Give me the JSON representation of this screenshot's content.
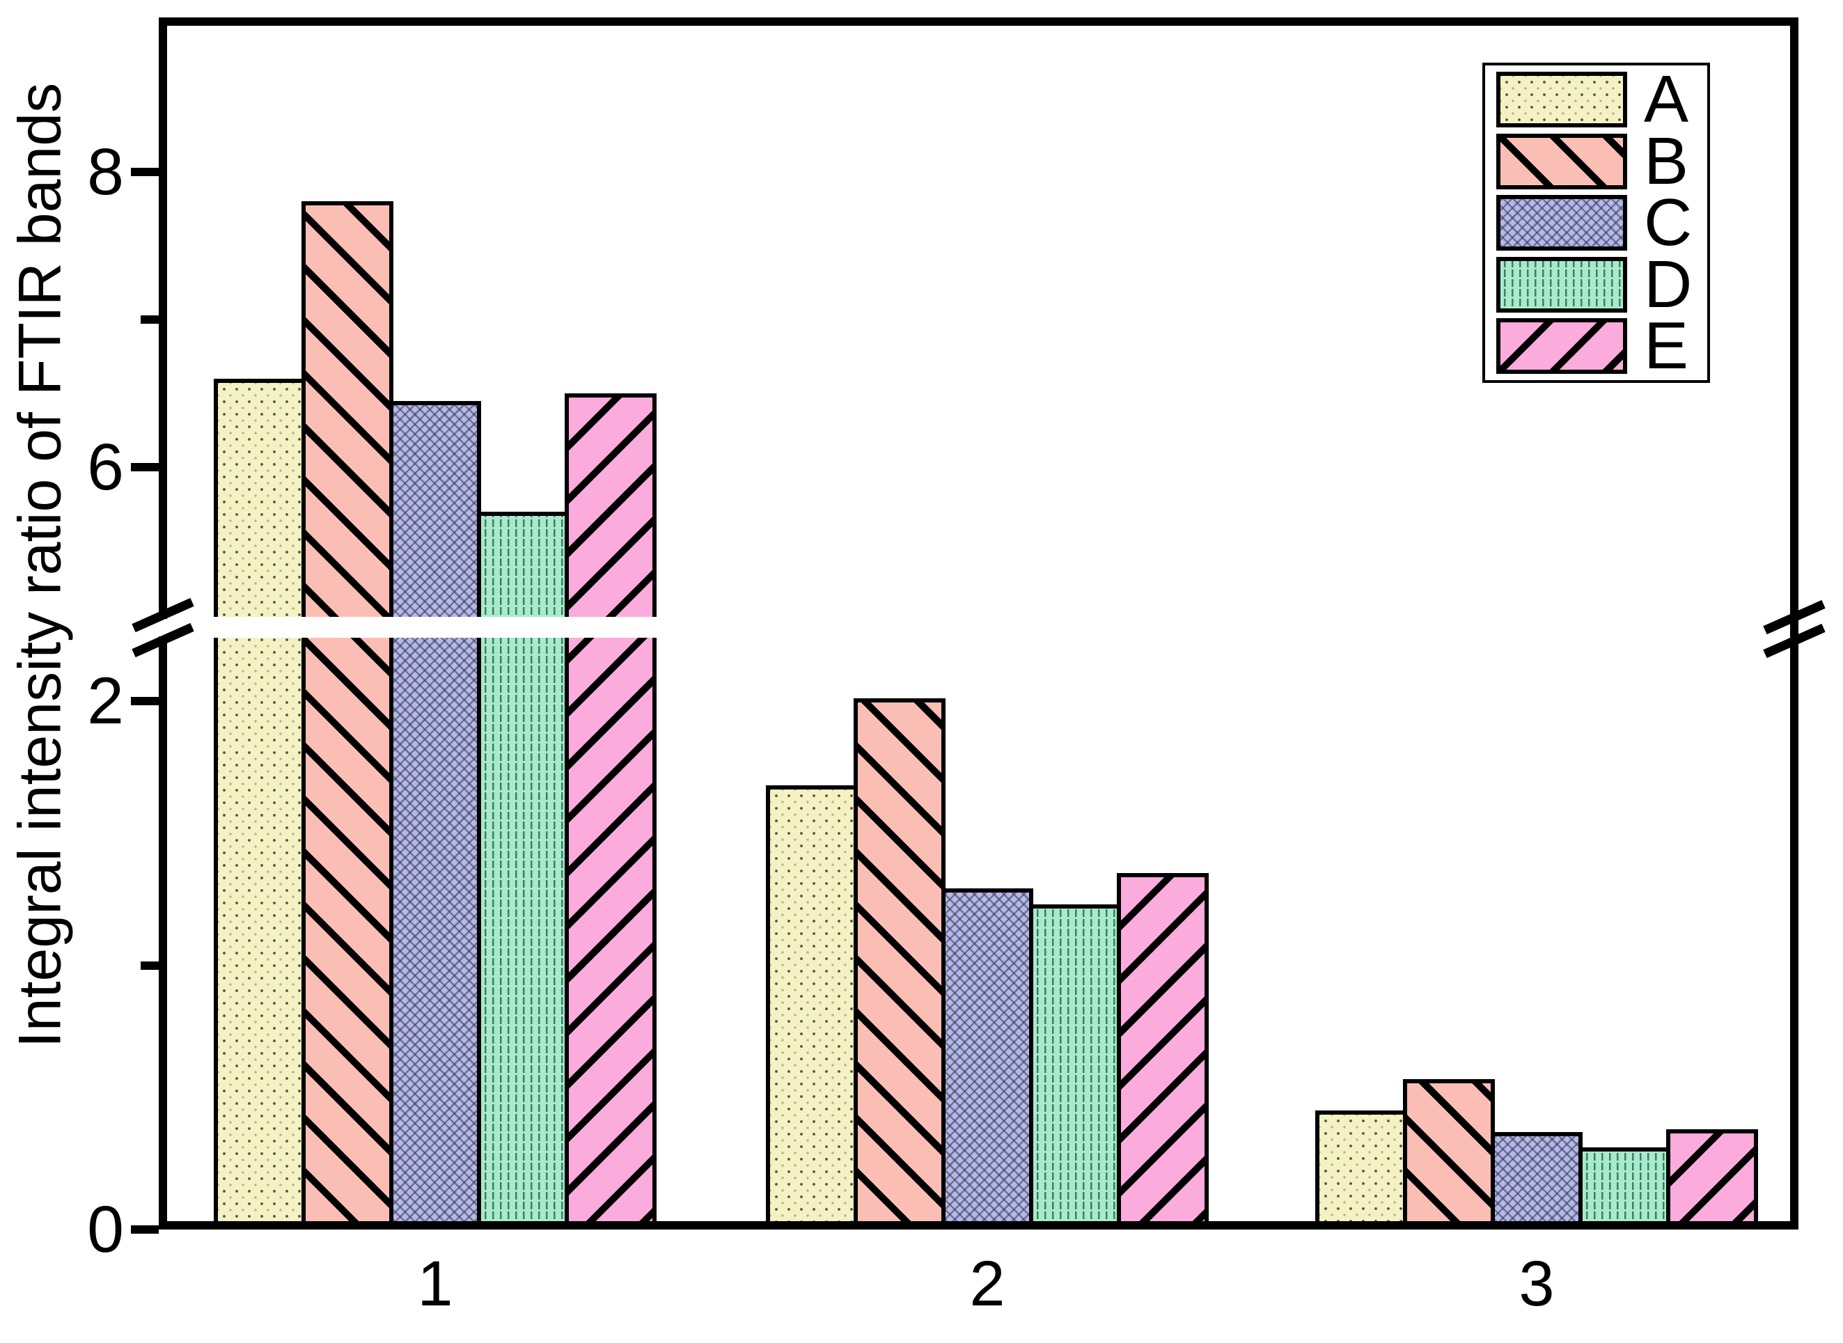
{
  "figure": {
    "background": "#FFFFFF"
  },
  "y_axis": {
    "title": "Integral intensity ratio of FTIR bands",
    "major_ticks": [
      {
        "value": 8,
        "text": "8"
      },
      {
        "value": 6,
        "text": "6"
      },
      {
        "value": 2,
        "text": "2"
      },
      {
        "value": 0,
        "text": "0"
      }
    ],
    "minor_ticks": [
      7,
      1
    ],
    "has_break": true
  },
  "x_axis": {
    "categories": [
      "1",
      "2",
      "3"
    ]
  },
  "legend": {
    "position": "top-right",
    "entries": [
      "A",
      "B",
      "C",
      "D",
      "E"
    ]
  },
  "chart_data": {
    "type": "bar",
    "title": "",
    "xlabel": "",
    "ylabel": "Integral intensity ratio of FTIR bands",
    "categories": [
      "1",
      "2",
      "3"
    ],
    "series": [
      {
        "name": "A",
        "values": [
          6.6,
          1.68,
          0.45
        ],
        "color": "#F4F1C4",
        "pattern": "dots"
      },
      {
        "name": "B",
        "values": [
          7.8,
          2.01,
          0.57
        ],
        "color": "#FBBEB5",
        "pattern": "diagonal-down"
      },
      {
        "name": "C",
        "values": [
          6.45,
          1.29,
          0.37
        ],
        "color": "#B5B9E4",
        "pattern": "crosshatch-weave"
      },
      {
        "name": "D",
        "values": [
          5.7,
          1.23,
          0.31
        ],
        "color": "#AAE9CC",
        "pattern": "vertical-dashes"
      },
      {
        "name": "E",
        "values": [
          6.5,
          1.35,
          0.38
        ],
        "color": "#FBABDC",
        "pattern": "diagonal-up"
      }
    ],
    "axis_break": {
      "lower_segment": [
        0,
        2.25
      ],
      "upper_segment": [
        5.0,
        9.05
      ]
    },
    "y_ticks_major": [
      0,
      2,
      6,
      8
    ],
    "y_ticks_minor": [
      1,
      7
    ],
    "grid": false,
    "legend_position": "top-right",
    "outline_color": "#000000"
  }
}
